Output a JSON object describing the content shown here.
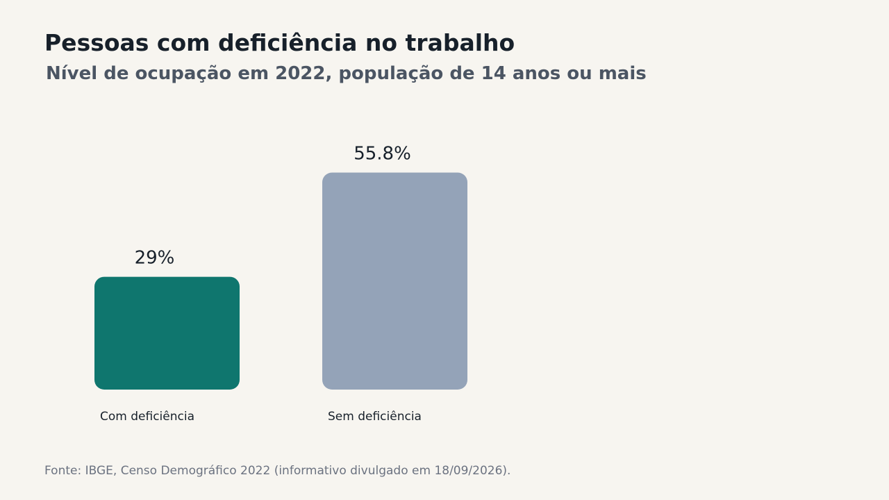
{
  "header": {
    "title": "Pessoas com deficiência no trabalho",
    "subtitle": "Nível de ocupação em 2022, população de 14 anos ou mais"
  },
  "footer": {
    "source": "Fonte: IBGE, Censo Demográfico 2022 (informativo divulgado em 18/09/2026)."
  },
  "chart_data": {
    "type": "bar",
    "title": "Pessoas com deficiência no trabalho",
    "subtitle": "Nível de ocupação em 2022, população de 14 anos ou mais",
    "categories": [
      "Com deficiência",
      "Sem deficiência"
    ],
    "values": [
      29,
      55.8
    ],
    "value_labels": [
      "29%",
      "55.8%"
    ],
    "unit": "%",
    "colors": [
      "#0f766e",
      "#94a3b8"
    ],
    "ylim": [
      0,
      100
    ],
    "grid": false,
    "legend": "none"
  }
}
